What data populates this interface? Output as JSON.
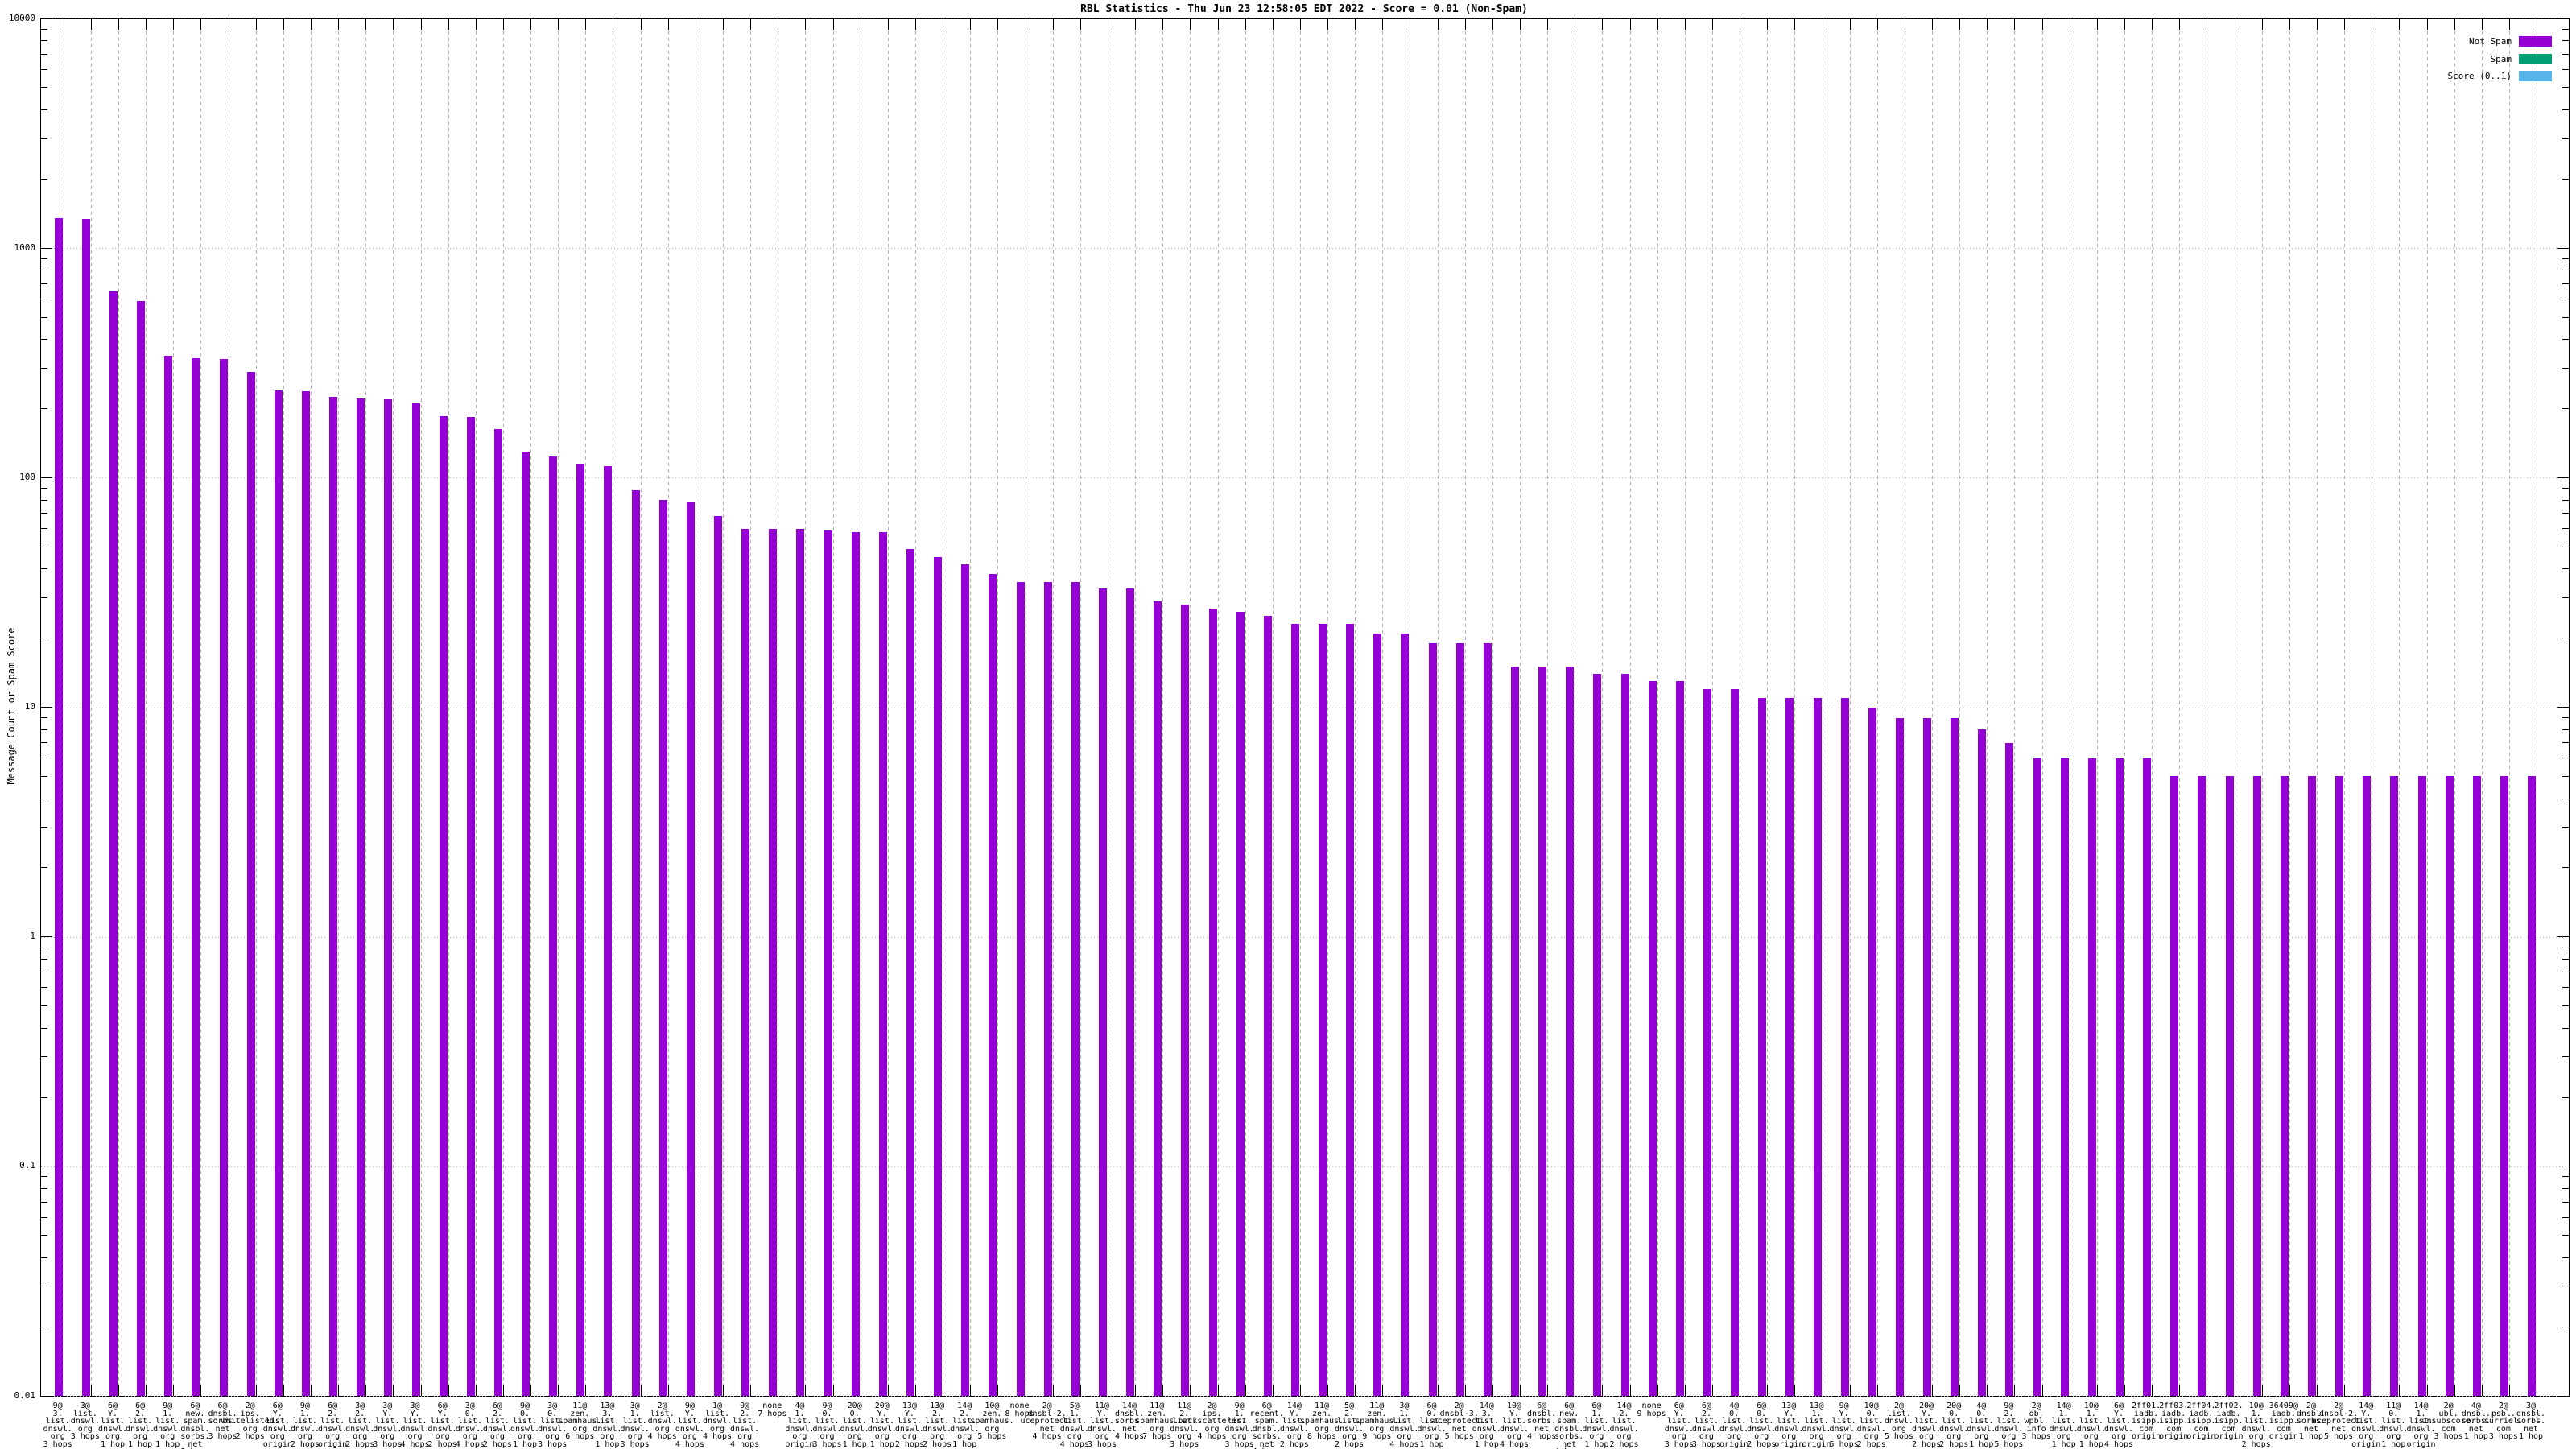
{
  "chart_data": {
    "type": "bar",
    "title": "RBL Statistics - Thu Jun 23 12:58:05 EDT 2022 - Score = 0.01 (Non-Spam)",
    "ylabel": "Message Count or Spam Score",
    "y_scale": "log",
    "ylim": [
      0.01,
      10000
    ],
    "y_tick_labels": [
      "10000",
      "1000",
      "100",
      "10",
      "1",
      "0.1",
      "0.01"
    ],
    "grid": true,
    "legend_position": "top-right-inside",
    "legend": [
      {
        "label": "Not Spam",
        "color": "#9400D3"
      },
      {
        "label": "Spam",
        "color": "#009E73"
      },
      {
        "label": "Score (0..1)",
        "color": "#56B4E9"
      }
    ],
    "bars_series": "Not Spam",
    "bars": [
      {
        "rbl": "9@3.list.dnswl.org",
        "hops": "3 hops",
        "value": 1350
      },
      {
        "rbl": "3@list.dnswl.org",
        "hops": "3 hops",
        "value": 1340
      },
      {
        "rbl": "6@Y.list.dnswl.org",
        "hops": "1 hop",
        "value": 650
      },
      {
        "rbl": "6@2.list.dnswl.org",
        "hops": "1 hop",
        "value": 590
      },
      {
        "rbl": "9@1.list.dnswl.org",
        "hops": "1 hop",
        "value": 340
      },
      {
        "rbl": "6@new.spam.dnsbl.sorbs.net",
        "hops": "3 hops",
        "value": 332
      },
      {
        "rbl": "6@dnsbl.sorbs.net",
        "hops": "3 hops",
        "value": 330
      },
      {
        "rbl": "2@ips.whitelisted.org",
        "hops": "2 hops",
        "value": 290
      },
      {
        "rbl": "6@Y.list.dnswl.org",
        "hops": "origin",
        "value": 240
      },
      {
        "rbl": "9@1.list.dnswl.org",
        "hops": "2 hops",
        "value": 238
      },
      {
        "rbl": "6@2.list.dnswl.org",
        "hops": "origin",
        "value": 225
      },
      {
        "rbl": "3@2.list.dnswl.org",
        "hops": "2 hops",
        "value": 221
      },
      {
        "rbl": "3@Y.list.dnswl.org",
        "hops": "3 hops",
        "value": 219
      },
      {
        "rbl": "3@Y.list.dnswl.org",
        "hops": "4 hops",
        "value": 211
      },
      {
        "rbl": "6@Y.list.dnswl.org",
        "hops": "2 hops",
        "value": 186
      },
      {
        "rbl": "3@0.list.dnswl.org",
        "hops": "4 hops",
        "value": 184
      },
      {
        "rbl": "6@2.list.dnswl.org",
        "hops": "2 hops",
        "value": 163
      },
      {
        "rbl": "9@0.list.dnswl.org",
        "hops": "1 hop",
        "value": 130
      },
      {
        "rbl": "3@0.list.dnswl.org",
        "hops": "3 hops",
        "value": 124
      },
      {
        "rbl": "11@zen.spamhaus.org",
        "hops": "6 hops",
        "value": 115
      },
      {
        "rbl": "13@3.list.dnswl.org",
        "hops": "1 hop",
        "value": 112
      },
      {
        "rbl": "3@1.list.dnswl.org",
        "hops": "3 hops",
        "value": 88
      },
      {
        "rbl": "2@list.dnswl.org",
        "hops": "4 hops",
        "value": 80
      },
      {
        "rbl": "9@Y.list.dnswl.org",
        "hops": "4 hops",
        "value": 78
      },
      {
        "rbl": "1@list.dnswl.org",
        "hops": "4 hops",
        "value": 68
      },
      {
        "rbl": "9@2.list.dnswl.org",
        "hops": "4 hops",
        "value": 60
      },
      {
        "rbl": "none",
        "hops": "7 hops",
        "value": 60
      },
      {
        "rbl": "4@1.list.dnswl.org",
        "hops": "origin",
        "value": 60
      },
      {
        "rbl": "9@0.list.dnswl.org",
        "hops": "3 hops",
        "value": 59
      },
      {
        "rbl": "20@0.list.dnswl.org",
        "hops": "1 hop",
        "value": 58
      },
      {
        "rbl": "20@Y.list.dnswl.org",
        "hops": "1 hop",
        "value": 58
      },
      {
        "rbl": "13@Y.list.dnswl.org",
        "hops": "2 hops",
        "value": 49
      },
      {
        "rbl": "13@2.list.dnswl.org",
        "hops": "2 hops",
        "value": 45
      },
      {
        "rbl": "14@2.list.dnswl.org",
        "hops": "1 hop",
        "value": 42
      },
      {
        "rbl": "10@zen.spamhaus.org",
        "hops": "5 hops",
        "value": 38
      },
      {
        "rbl": "none",
        "hops": "8 hops",
        "value": 35
      },
      {
        "rbl": "2@dnsbl-2.uceprotect.net",
        "hops": "4 hops",
        "value": 35
      },
      {
        "rbl": "5@1.list.dnswl.org",
        "hops": "4 hops",
        "value": 35
      },
      {
        "rbl": "11@Y.list.dnswl.org",
        "hops": "3 hops",
        "value": 33
      },
      {
        "rbl": "14@dnsbl.sorbs.net",
        "hops": "4 hops",
        "value": 33
      },
      {
        "rbl": "11@zen.spamhaus.org",
        "hops": "7 hops",
        "value": 29
      },
      {
        "rbl": "11@2.list.dnswl.org",
        "hops": "3 hops",
        "value": 28
      },
      {
        "rbl": "2@ips.backscatterer.org",
        "hops": "4 hops",
        "value": 27
      },
      {
        "rbl": "9@1.list.dnswl.org",
        "hops": "3 hops",
        "value": 26
      },
      {
        "rbl": "6@recent.spam.dnsbl.sorbs.net",
        "hops": "4 hops",
        "value": 25
      },
      {
        "rbl": "14@Y.list.dnswl.org",
        "hops": "2 hops",
        "value": 23
      },
      {
        "rbl": "11@zen.spamhaus.org",
        "hops": "8 hops",
        "value": 23
      },
      {
        "rbl": "5@2.list.dnswl.org",
        "hops": "2 hops",
        "value": 23
      },
      {
        "rbl": "11@zen.spamhaus.org",
        "hops": "9 hops",
        "value": 21
      },
      {
        "rbl": "3@1.list.dnswl.org",
        "hops": "4 hops",
        "value": 21
      },
      {
        "rbl": "6@0.list.dnswl.org",
        "hops": "1 hop",
        "value": 19
      },
      {
        "rbl": "2@dnsbl-3.uceprotect.net",
        "hops": "5 hops",
        "value": 19
      },
      {
        "rbl": "14@3.list.dnswl.org",
        "hops": "1 hop",
        "value": 19
      },
      {
        "rbl": "10@Y.list.dnswl.org",
        "hops": "4 hops",
        "value": 15
      },
      {
        "rbl": "6@dnsbl.sorbs.net",
        "hops": "4 hops",
        "value": 15
      },
      {
        "rbl": "6@new.spam.dnsbl.sorbs.net",
        "hops": "4 hops",
        "value": 15
      },
      {
        "rbl": "6@1.list.dnswl.org",
        "hops": "1 hop",
        "value": 14
      },
      {
        "rbl": "14@2.list.dnswl.org",
        "hops": "2 hops",
        "value": 14
      },
      {
        "rbl": "none",
        "hops": "9 hops",
        "value": 13
      },
      {
        "rbl": "6@Y.list.dnswl.org",
        "hops": "3 hops",
        "value": 13
      },
      {
        "rbl": "6@2.list.dnswl.org",
        "hops": "3 hops",
        "value": 12
      },
      {
        "rbl": "4@0.list.dnswl.org",
        "hops": "origin",
        "value": 12
      },
      {
        "rbl": "6@0.list.dnswl.org",
        "hops": "2 hops",
        "value": 11
      },
      {
        "rbl": "13@Y.list.dnswl.org",
        "hops": "origin",
        "value": 11
      },
      {
        "rbl": "13@1.list.dnswl.org",
        "hops": "origin",
        "value": 11
      },
      {
        "rbl": "9@Y.list.dnswl.org",
        "hops": "5 hops",
        "value": 11
      },
      {
        "rbl": "10@0.list.dnswl.org",
        "hops": "2 hops",
        "value": 10
      },
      {
        "rbl": "2@list.dnswl.org",
        "hops": "5 hops",
        "value": 9
      },
      {
        "rbl": "20@Y.list.dnswl.org",
        "hops": "2 hops",
        "value": 9
      },
      {
        "rbl": "20@0.list.dnswl.org",
        "hops": "2 hops",
        "value": 9
      },
      {
        "rbl": "4@0.list.dnswl.org",
        "hops": "1 hop",
        "value": 8
      },
      {
        "rbl": "9@2.list.dnswl.org",
        "hops": "5 hops",
        "value": 7
      },
      {
        "rbl": "2@db.wpbl.info",
        "hops": "3 hops",
        "value": 6
      },
      {
        "rbl": "14@1.list.dnswl.org",
        "hops": "1 hop",
        "value": 6
      },
      {
        "rbl": "10@1.list.dnswl.org",
        "hops": "1 hop",
        "value": 6
      },
      {
        "rbl": "6@Y.list.dnswl.org",
        "hops": "4 hops",
        "value": 6
      },
      {
        "rbl": "2ff01.iadb.isipp.com",
        "hops": "origin",
        "value": 6
      },
      {
        "rbl": "2ff03.iadb.isipp.com",
        "hops": "origin",
        "value": 5
      },
      {
        "rbl": "2ff04.iadb.isipp.com",
        "hops": "origin",
        "value": 5
      },
      {
        "rbl": "2ff02.iadb.isipp.com",
        "hops": "origin",
        "value": 5
      },
      {
        "rbl": "10@1.list.dnswl.org",
        "hops": "2 hops",
        "value": 5
      },
      {
        "rbl": "36409@iadb.isipp.com",
        "hops": "origin",
        "value": 5
      },
      {
        "rbl": "2@dnsbl.sorbs.net",
        "hops": "1 hop",
        "value": 5
      },
      {
        "rbl": "2@dnsbl-2.uceprotect.net",
        "hops": "5 hops",
        "value": 5
      },
      {
        "rbl": "14@Y.list.dnswl.org",
        "hops": "origin",
        "value": 5
      },
      {
        "rbl": "11@0.list.dnswl.org",
        "hops": "1 hop",
        "value": 5
      },
      {
        "rbl": "14@1.list.dnswl.org",
        "hops": "origin",
        "value": 5
      },
      {
        "rbl": "2@ubl.unsubscore.com",
        "hops": "3 hops",
        "value": 5
      },
      {
        "rbl": "4@dnsbl.sorbs.net",
        "hops": "1 hop",
        "value": 5
      },
      {
        "rbl": "2@psbl.surriel.com",
        "hops": "3 hops",
        "value": 5
      },
      {
        "rbl": "3@dnsbl.sorbs.net",
        "hops": "1 hop",
        "value": 5
      }
    ]
  }
}
